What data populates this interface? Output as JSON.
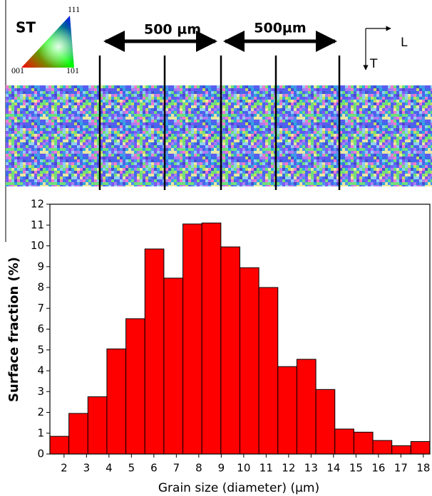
{
  "map": {
    "legend_label": "ST",
    "poles": [
      "001",
      "101",
      "111"
    ],
    "scale_bars": [
      "500 µm",
      "500µm"
    ],
    "directions": [
      "L",
      "T"
    ]
  },
  "chart_data": {
    "type": "histogram",
    "bins": [
      1.37,
      2.216,
      3.062,
      3.908,
      4.754,
      5.6,
      6.446,
      7.292,
      8.138,
      8.984,
      9.83,
      10.676,
      11.522,
      12.368,
      13.214,
      14.06,
      14.906,
      15.752,
      16.598,
      17.444,
      18.29
    ],
    "values": [
      0.85,
      1.95,
      2.75,
      5.05,
      6.5,
      9.85,
      8.45,
      11.05,
      11.1,
      9.95,
      8.95,
      8.0,
      4.2,
      4.55,
      3.1,
      1.2,
      1.05,
      0.65,
      0.4,
      0.6
    ],
    "color": "#ff0000",
    "xlim": [
      1.37,
      18.29
    ],
    "xticks": [
      2,
      3,
      4,
      5,
      6,
      7,
      8,
      9,
      10,
      11,
      12,
      13,
      14,
      15,
      16,
      17,
      18
    ],
    "ylim": [
      0,
      12
    ],
    "yticks": [
      0,
      1,
      2,
      3,
      4,
      5,
      6,
      7,
      8,
      9,
      10,
      11,
      12
    ],
    "xlabel": "Grain size (diameter) (µm)",
    "ylabel": "Surface fraction (%)"
  }
}
